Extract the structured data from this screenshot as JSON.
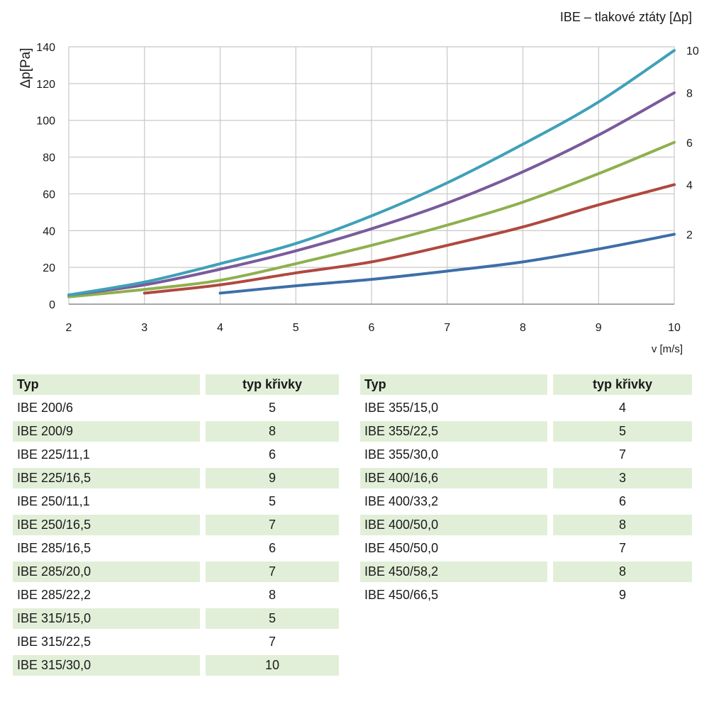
{
  "chart_data": {
    "type": "line",
    "title": "IBE – tlakové ztáty [Δp]",
    "xlabel": "v [m/s]",
    "ylabel": "Δp[Pa]",
    "xlim": [
      2,
      10
    ],
    "ylim": [
      0,
      140
    ],
    "x_ticks": [
      "2",
      "3",
      "4",
      "5",
      "6",
      "7",
      "8",
      "9",
      "10"
    ],
    "y_ticks": [
      "0",
      "20",
      "40",
      "60",
      "80",
      "100",
      "120",
      "140"
    ],
    "grid": true,
    "series": [
      {
        "name": "2",
        "color": "#3d6ea8",
        "x": [
          4,
          5,
          6,
          7,
          8,
          9,
          10
        ],
        "y": [
          6,
          10,
          13.5,
          18,
          23,
          30,
          38
        ]
      },
      {
        "name": "4",
        "color": "#b04840",
        "x": [
          3,
          4,
          5,
          6,
          7,
          8,
          9,
          10
        ],
        "y": [
          6,
          10.5,
          17,
          23,
          32,
          42,
          54,
          65
        ]
      },
      {
        "name": "6",
        "color": "#8fb04e",
        "x": [
          2,
          3,
          4,
          5,
          6,
          7,
          8,
          9,
          10
        ],
        "y": [
          4,
          8,
          13,
          22,
          32,
          43,
          55.5,
          71,
          88
        ]
      },
      {
        "name": "8",
        "color": "#7a5a9c",
        "x": [
          2,
          3,
          4,
          5,
          6,
          7,
          8,
          9,
          10
        ],
        "y": [
          5,
          10.5,
          19,
          29,
          41,
          55,
          72,
          92,
          115
        ]
      },
      {
        "name": "10",
        "color": "#3fa0b8",
        "x": [
          2,
          3,
          4,
          5,
          6,
          7,
          8,
          9,
          10
        ],
        "y": [
          5,
          12,
          22,
          33,
          48,
          66,
          87,
          110,
          138
        ]
      }
    ]
  },
  "tables": {
    "left": {
      "headers": [
        "Typ",
        "typ křivky"
      ],
      "rows": [
        [
          "IBE 200/6",
          "5"
        ],
        [
          "IBE 200/9",
          "8"
        ],
        [
          "IBE 225/11,1",
          "6"
        ],
        [
          "IBE 225/16,5",
          "9"
        ],
        [
          "IBE 250/11,1",
          "5"
        ],
        [
          "IBE 250/16,5",
          "7"
        ],
        [
          "IBE 285/16,5",
          "6"
        ],
        [
          "IBE 285/20,0",
          "7"
        ],
        [
          "IBE 285/22,2",
          "8"
        ],
        [
          "IBE 315/15,0",
          "5"
        ],
        [
          "IBE 315/22,5",
          "7"
        ],
        [
          "IBE 315/30,0",
          "10"
        ]
      ]
    },
    "right": {
      "headers": [
        "Typ",
        "typ křivky"
      ],
      "rows": [
        [
          "IBE 355/15,0",
          "4"
        ],
        [
          "IBE 355/22,5",
          "5"
        ],
        [
          "IBE 355/30,0",
          "7"
        ],
        [
          "IBE 400/16,6",
          "3"
        ],
        [
          "IBE 400/33,2",
          "6"
        ],
        [
          "IBE 400/50,0",
          "8"
        ],
        [
          "IBE 450/50,0",
          "7"
        ],
        [
          "IBE 450/58,2",
          "8"
        ],
        [
          "IBE 450/66,5",
          "9"
        ]
      ]
    }
  }
}
